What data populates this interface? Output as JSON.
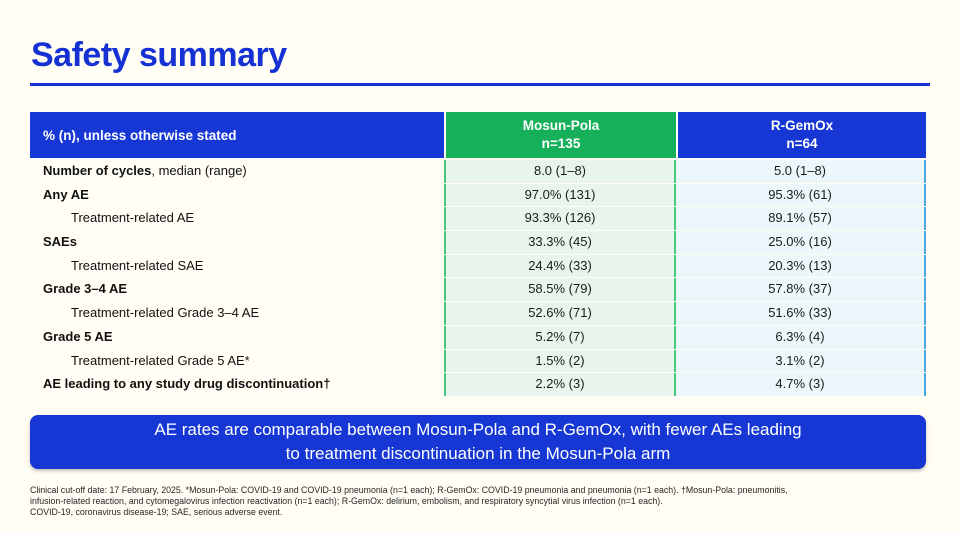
{
  "page": {
    "title": "Safety summary"
  },
  "colors": {
    "accent_blue": "#1637d4",
    "accent_green": "#17b05a",
    "mosun_tint": "#e8f5ed",
    "rgemox_tint": "#ecf7fb",
    "green_border": "#45c87e",
    "blue_border": "#49a8dd",
    "background": "#fffdf4"
  },
  "table": {
    "header": {
      "label": "% (n), unless otherwise stated",
      "mosun_line1": "Mosun-Pola",
      "mosun_line2": "n=135",
      "rgemox_line1": "R-GemOx",
      "rgemox_line2": "n=64"
    },
    "rows": [
      {
        "bold": "Number of cycles",
        "rest": ", median (range)",
        "mosun": "8.0 (1–8)",
        "rgemox": "5.0 (1–8)"
      },
      {
        "bold": "Any AE",
        "rest": "",
        "mosun": "97.0% (131)",
        "rgemox": "95.3% (61)"
      },
      {
        "bold": "",
        "rest": "Treatment-related AE",
        "mosun": "93.3% (126)",
        "rgemox": "89.1% (57)"
      },
      {
        "bold": "SAEs",
        "rest": "",
        "mosun": "33.3% (45)",
        "rgemox": "25.0% (16)"
      },
      {
        "bold": "",
        "rest": "Treatment-related SAE",
        "mosun": "24.4% (33)",
        "rgemox": "20.3% (13)"
      },
      {
        "bold": "Grade 3–4 AE",
        "rest": "",
        "mosun": "58.5% (79)",
        "rgemox": "57.8% (37)"
      },
      {
        "bold": "",
        "rest": "Treatment-related Grade 3–4 AE",
        "mosun": "52.6% (71)",
        "rgemox": "51.6% (33)"
      },
      {
        "bold": "Grade 5 AE",
        "rest": "",
        "mosun": "5.2% (7)",
        "rgemox": "6.3% (4)"
      },
      {
        "bold": "",
        "rest": "Treatment-related Grade 5 AE*",
        "mosun": "1.5% (2)",
        "rgemox": "3.1% (2)"
      },
      {
        "bold": "AE leading to any study drug discontinuation†",
        "rest": "",
        "mosun": "2.2% (3)",
        "rgemox": "4.7% (3)"
      }
    ]
  },
  "banner": {
    "line1": "AE rates are comparable between Mosun-Pola and R-GemOx, with fewer AEs leading",
    "line2": "to treatment discontinuation in the Mosun-Pola arm"
  },
  "footnotes": {
    "line1": "Clinical cut-off date: 17 February, 2025. *Mosun-Pola: COVID-19 and COVID-19 pneumonia (n=1 each); R-GemOx: COVID-19 pneumonia and pneumonia (n=1 each). †Mosun-Pola: pneumonitis,",
    "line2": "infusion-related reaction, and cytomegalovirus infection reactivation (n=1 each); R-GemOx: delirium, embolism, and respiratory syncytial virus infection (n=1 each).",
    "line3": "COVID-19, coronavirus disease-19; SAE, serious adverse event."
  }
}
